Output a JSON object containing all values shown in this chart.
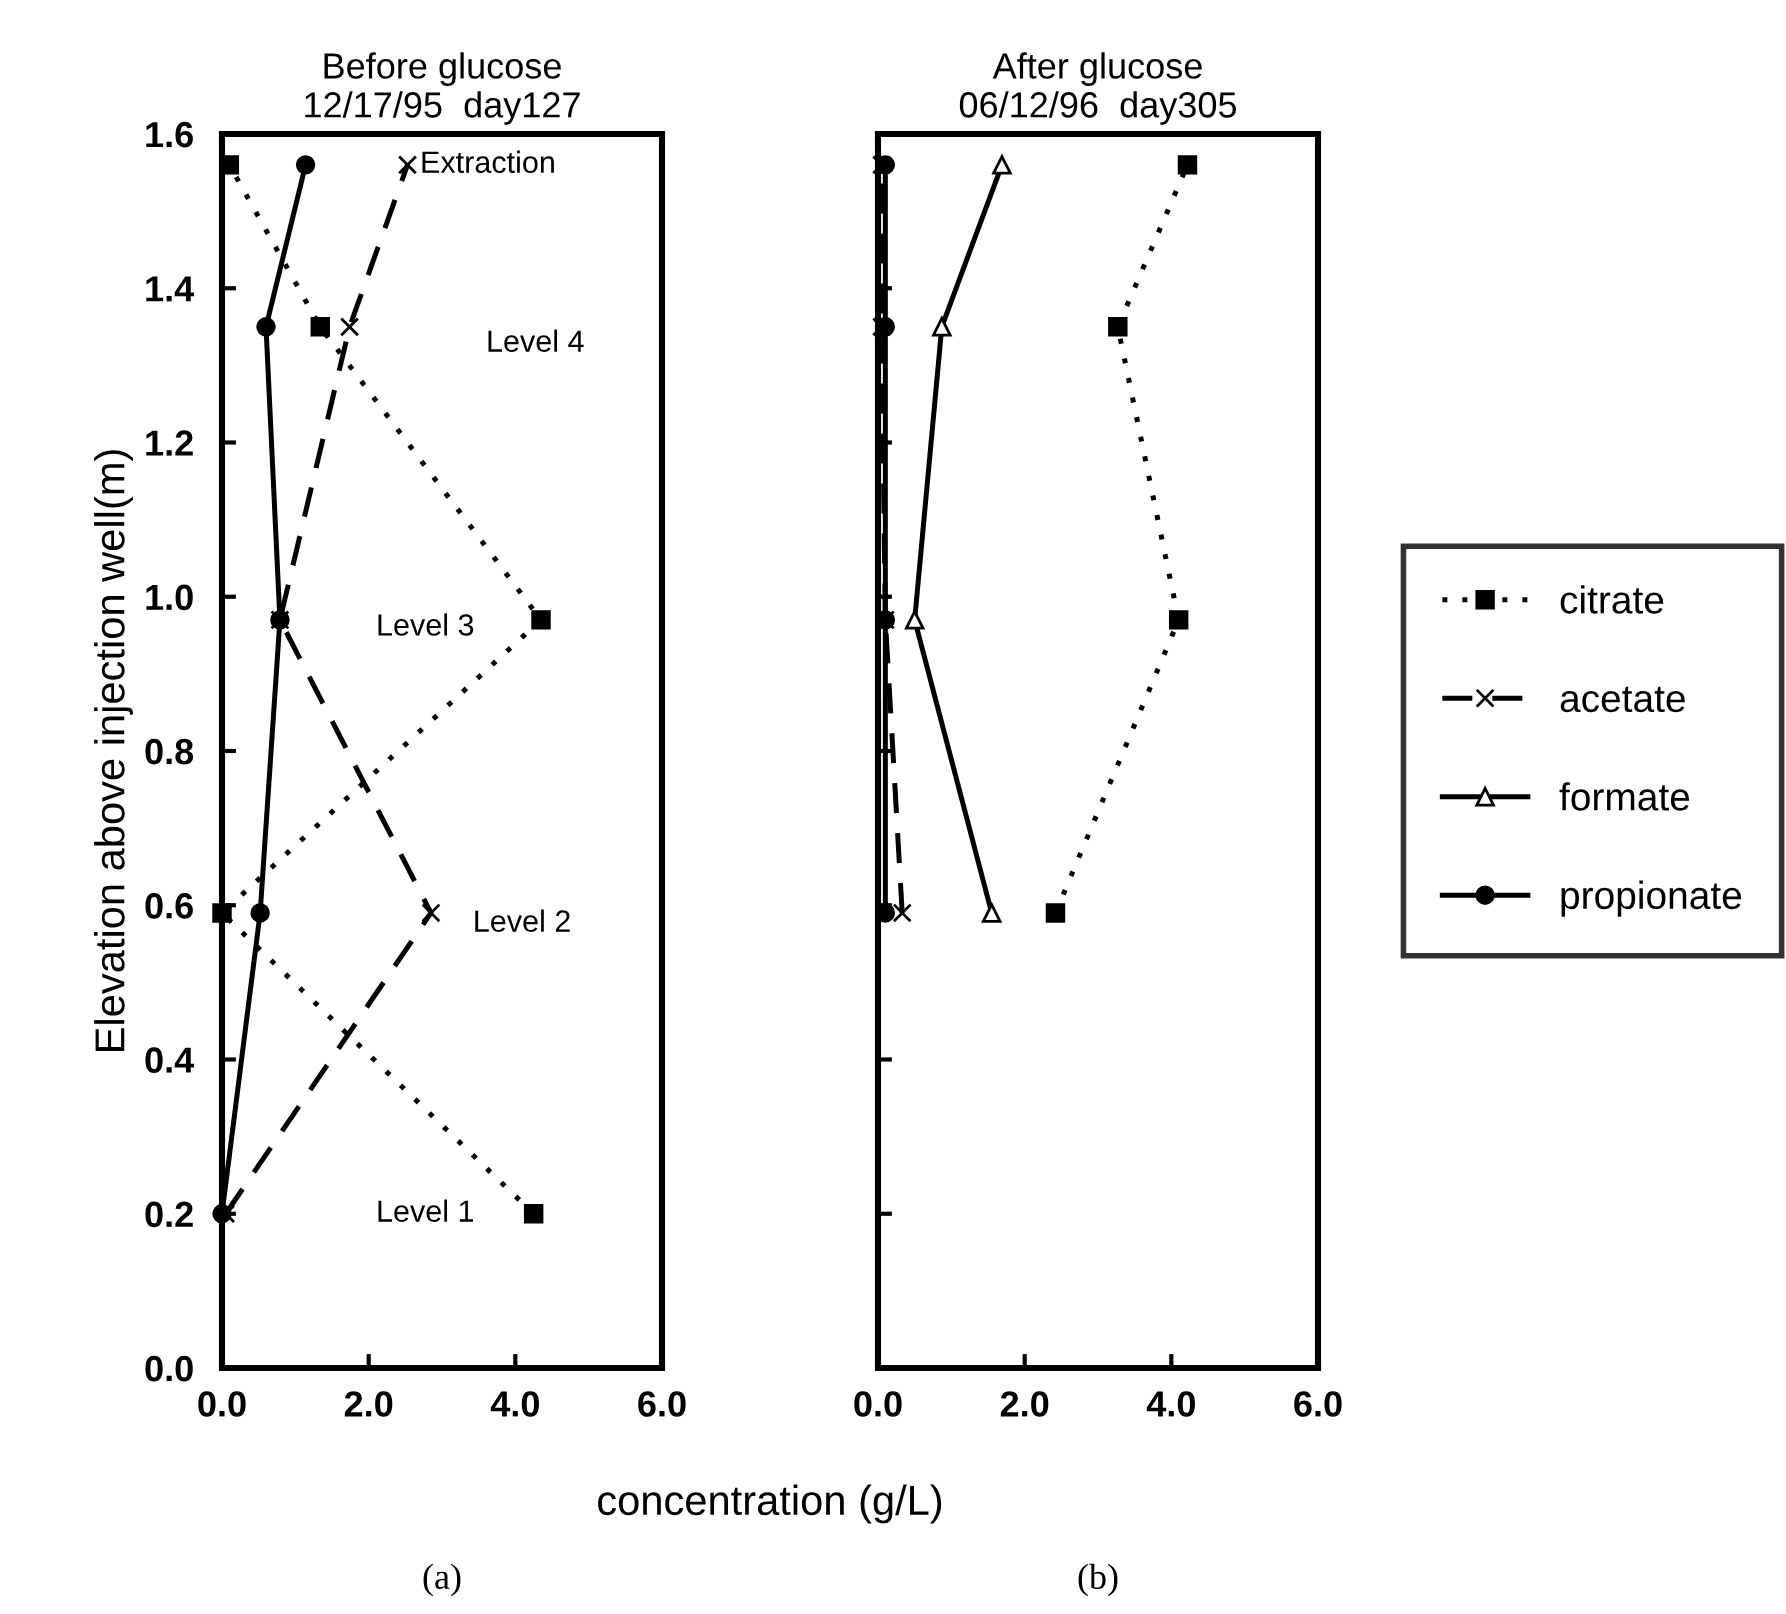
{
  "chart_data": [
    {
      "type": "line",
      "title": "Before glucose",
      "subtitle": "12/17/95  day127",
      "xlabel": "concentration (g/L)",
      "ylabel": "Elevation above injection well(m)",
      "orientation": "horizontal",
      "x": [
        0.2,
        0.59,
        0.97,
        1.35,
        1.56
      ],
      "series": [
        {
          "color": "#000000",
          "marker": "square",
          "line_style": "dotted",
          "values": [
            4.25,
            0.0,
            4.35,
            1.34,
            0.1
          ]
        },
        {
          "color": "#000000",
          "marker": "cross",
          "line_style": "dashed",
          "values": [
            0.05,
            2.85,
            0.79,
            1.74,
            2.53
          ]
        },
        {
          "color": "#000000",
          "marker": "circle",
          "line_style": "solid",
          "values": [
            0.0,
            0.52,
            0.79,
            0.6,
            1.14
          ]
        }
      ],
      "xlim": [
        0,
        6
      ],
      "xticks": [
        {
          "value": 0,
          "label": "0.0"
        },
        {
          "value": 2,
          "label": "2.0"
        },
        {
          "value": 4,
          "label": "4.0"
        },
        {
          "value": 6,
          "label": "6.0"
        }
      ],
      "ylim": [
        0,
        1.6
      ],
      "yticks": [
        {
          "value": 0,
          "label": "0.0"
        },
        {
          "value": 0.2,
          "label": "0.2"
        },
        {
          "value": 0.4,
          "label": "0.4"
        },
        {
          "value": 0.6,
          "label": "0.6"
        },
        {
          "value": 0.8,
          "label": "0.8"
        },
        {
          "value": 1.0,
          "label": "1.0"
        },
        {
          "value": 1.2,
          "label": "1.2"
        },
        {
          "value": 1.4,
          "label": "1.4"
        },
        {
          "value": 1.6,
          "label": "1.6"
        }
      ],
      "grid": false,
      "legend": false,
      "annotations": [
        "Extraction",
        "Level 4",
        "Level 3",
        "Level 2",
        "Level 1",
        "(a)"
      ]
    },
    {
      "type": "line",
      "title": "After glucose",
      "subtitle": "06/12/96  day305",
      "orientation": "horizontal",
      "x": [
        0.59,
        0.97,
        1.35,
        1.56
      ],
      "series": [
        {
          "name": "citrate",
          "color": "#000000",
          "marker": "square",
          "line_style": "dotted",
          "values": [
            2.42,
            4.1,
            3.27,
            4.22
          ]
        },
        {
          "name": "acetate",
          "color": "#000000",
          "marker": "cross",
          "line_style": "dashed",
          "values": [
            0.33,
            0.1,
            0.05,
            0.05
          ]
        },
        {
          "name": "formate",
          "color": "#000000",
          "marker": "triangle",
          "line_style": "solid",
          "values": [
            1.55,
            0.5,
            0.87,
            1.69
          ]
        },
        {
          "name": "propionate",
          "color": "#000000",
          "marker": "circle",
          "line_style": "solid",
          "values": [
            0.1,
            0.1,
            0.1,
            0.1
          ]
        }
      ],
      "xlim": [
        0,
        6
      ],
      "xticks": [
        {
          "value": 0,
          "label": "0.0"
        },
        {
          "value": 2,
          "label": "2.0"
        },
        {
          "value": 4,
          "label": "4.0"
        },
        {
          "value": 6,
          "label": "6.0"
        }
      ],
      "ylim": [
        0,
        1.6
      ],
      "yticks": [
        {
          "value": 0,
          "label": null
        },
        {
          "value": 0.2,
          "label": null
        },
        {
          "value": 0.4,
          "label": null
        },
        {
          "value": 0.6,
          "label": null
        },
        {
          "value": 0.8,
          "label": null
        },
        {
          "value": 1.0,
          "label": null
        },
        {
          "value": 1.2,
          "label": null
        },
        {
          "value": 1.4,
          "label": null
        },
        {
          "value": 1.6,
          "label": null
        }
      ],
      "tick_labels": "x",
      "grid": false,
      "legend": "right",
      "annotations": [
        "(b)"
      ]
    }
  ]
}
